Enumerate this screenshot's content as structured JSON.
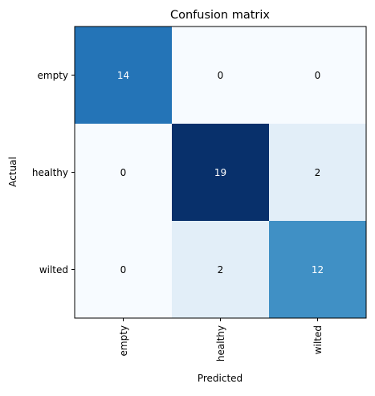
{
  "chart_data": {
    "type": "heatmap",
    "title": "Confusion matrix",
    "xlabel": "Predicted",
    "ylabel": "Actual",
    "x_categories": [
      "empty",
      "healthy",
      "wilted"
    ],
    "y_categories": [
      "empty",
      "healthy",
      "wilted"
    ],
    "values": [
      [
        14,
        0,
        0
      ],
      [
        0,
        19,
        2
      ],
      [
        0,
        2,
        12
      ]
    ],
    "colormap": "Blues",
    "value_range": [
      0,
      19
    ],
    "colors": {
      "low": "#f7fbff",
      "high": "#08306b",
      "text_dark": "#000000",
      "text_light": "#ffffff"
    },
    "grid": false,
    "legend": "none"
  }
}
